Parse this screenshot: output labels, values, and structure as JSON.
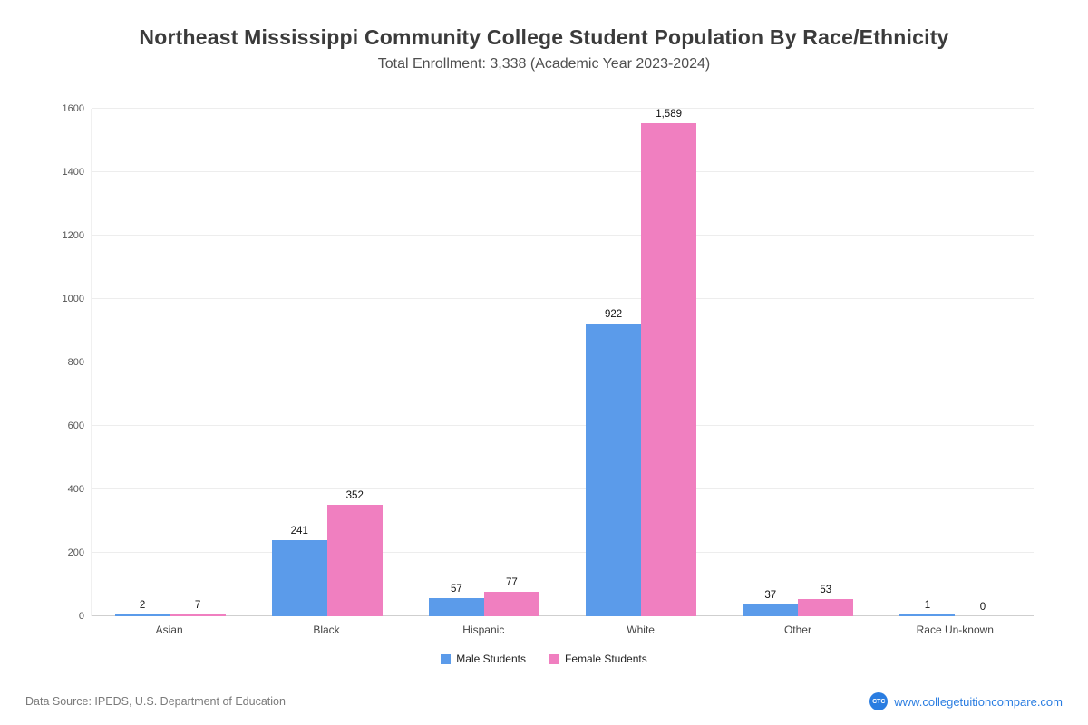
{
  "page": {
    "title": "Northeast Mississippi Community College Student Population By Race/Ethnicity",
    "subtitle": "Total Enrollment: 3,338 (Academic Year 2023-2024)"
  },
  "chart_data": {
    "type": "bar",
    "title": "Northeast Mississippi Community College Student Population By Race/Ethnicity",
    "subtitle": "Total Enrollment: 3,338 (Academic Year 2023-2024)",
    "categories": [
      "Asian",
      "Black",
      "Hispanic",
      "White",
      "Other",
      "Race Un-known"
    ],
    "series": [
      {
        "name": "Male Students",
        "color": "#5b9bea",
        "values": [
          2,
          241,
          57,
          922,
          37,
          1
        ]
      },
      {
        "name": "Female Students",
        "color": "#f07fc0",
        "values": [
          7,
          352,
          77,
          1589,
          53,
          0
        ]
      }
    ],
    "ylim": [
      0,
      1600
    ],
    "yticks": [
      0,
      200,
      400,
      600,
      800,
      1000,
      1200,
      1400,
      1600
    ],
    "grid": true,
    "legend_position": "bottom"
  },
  "footer": {
    "source": "Data Source: IPEDS, U.S. Department of Education",
    "site": "www.collegetuitioncompare.com",
    "logo_text": "CTC"
  }
}
